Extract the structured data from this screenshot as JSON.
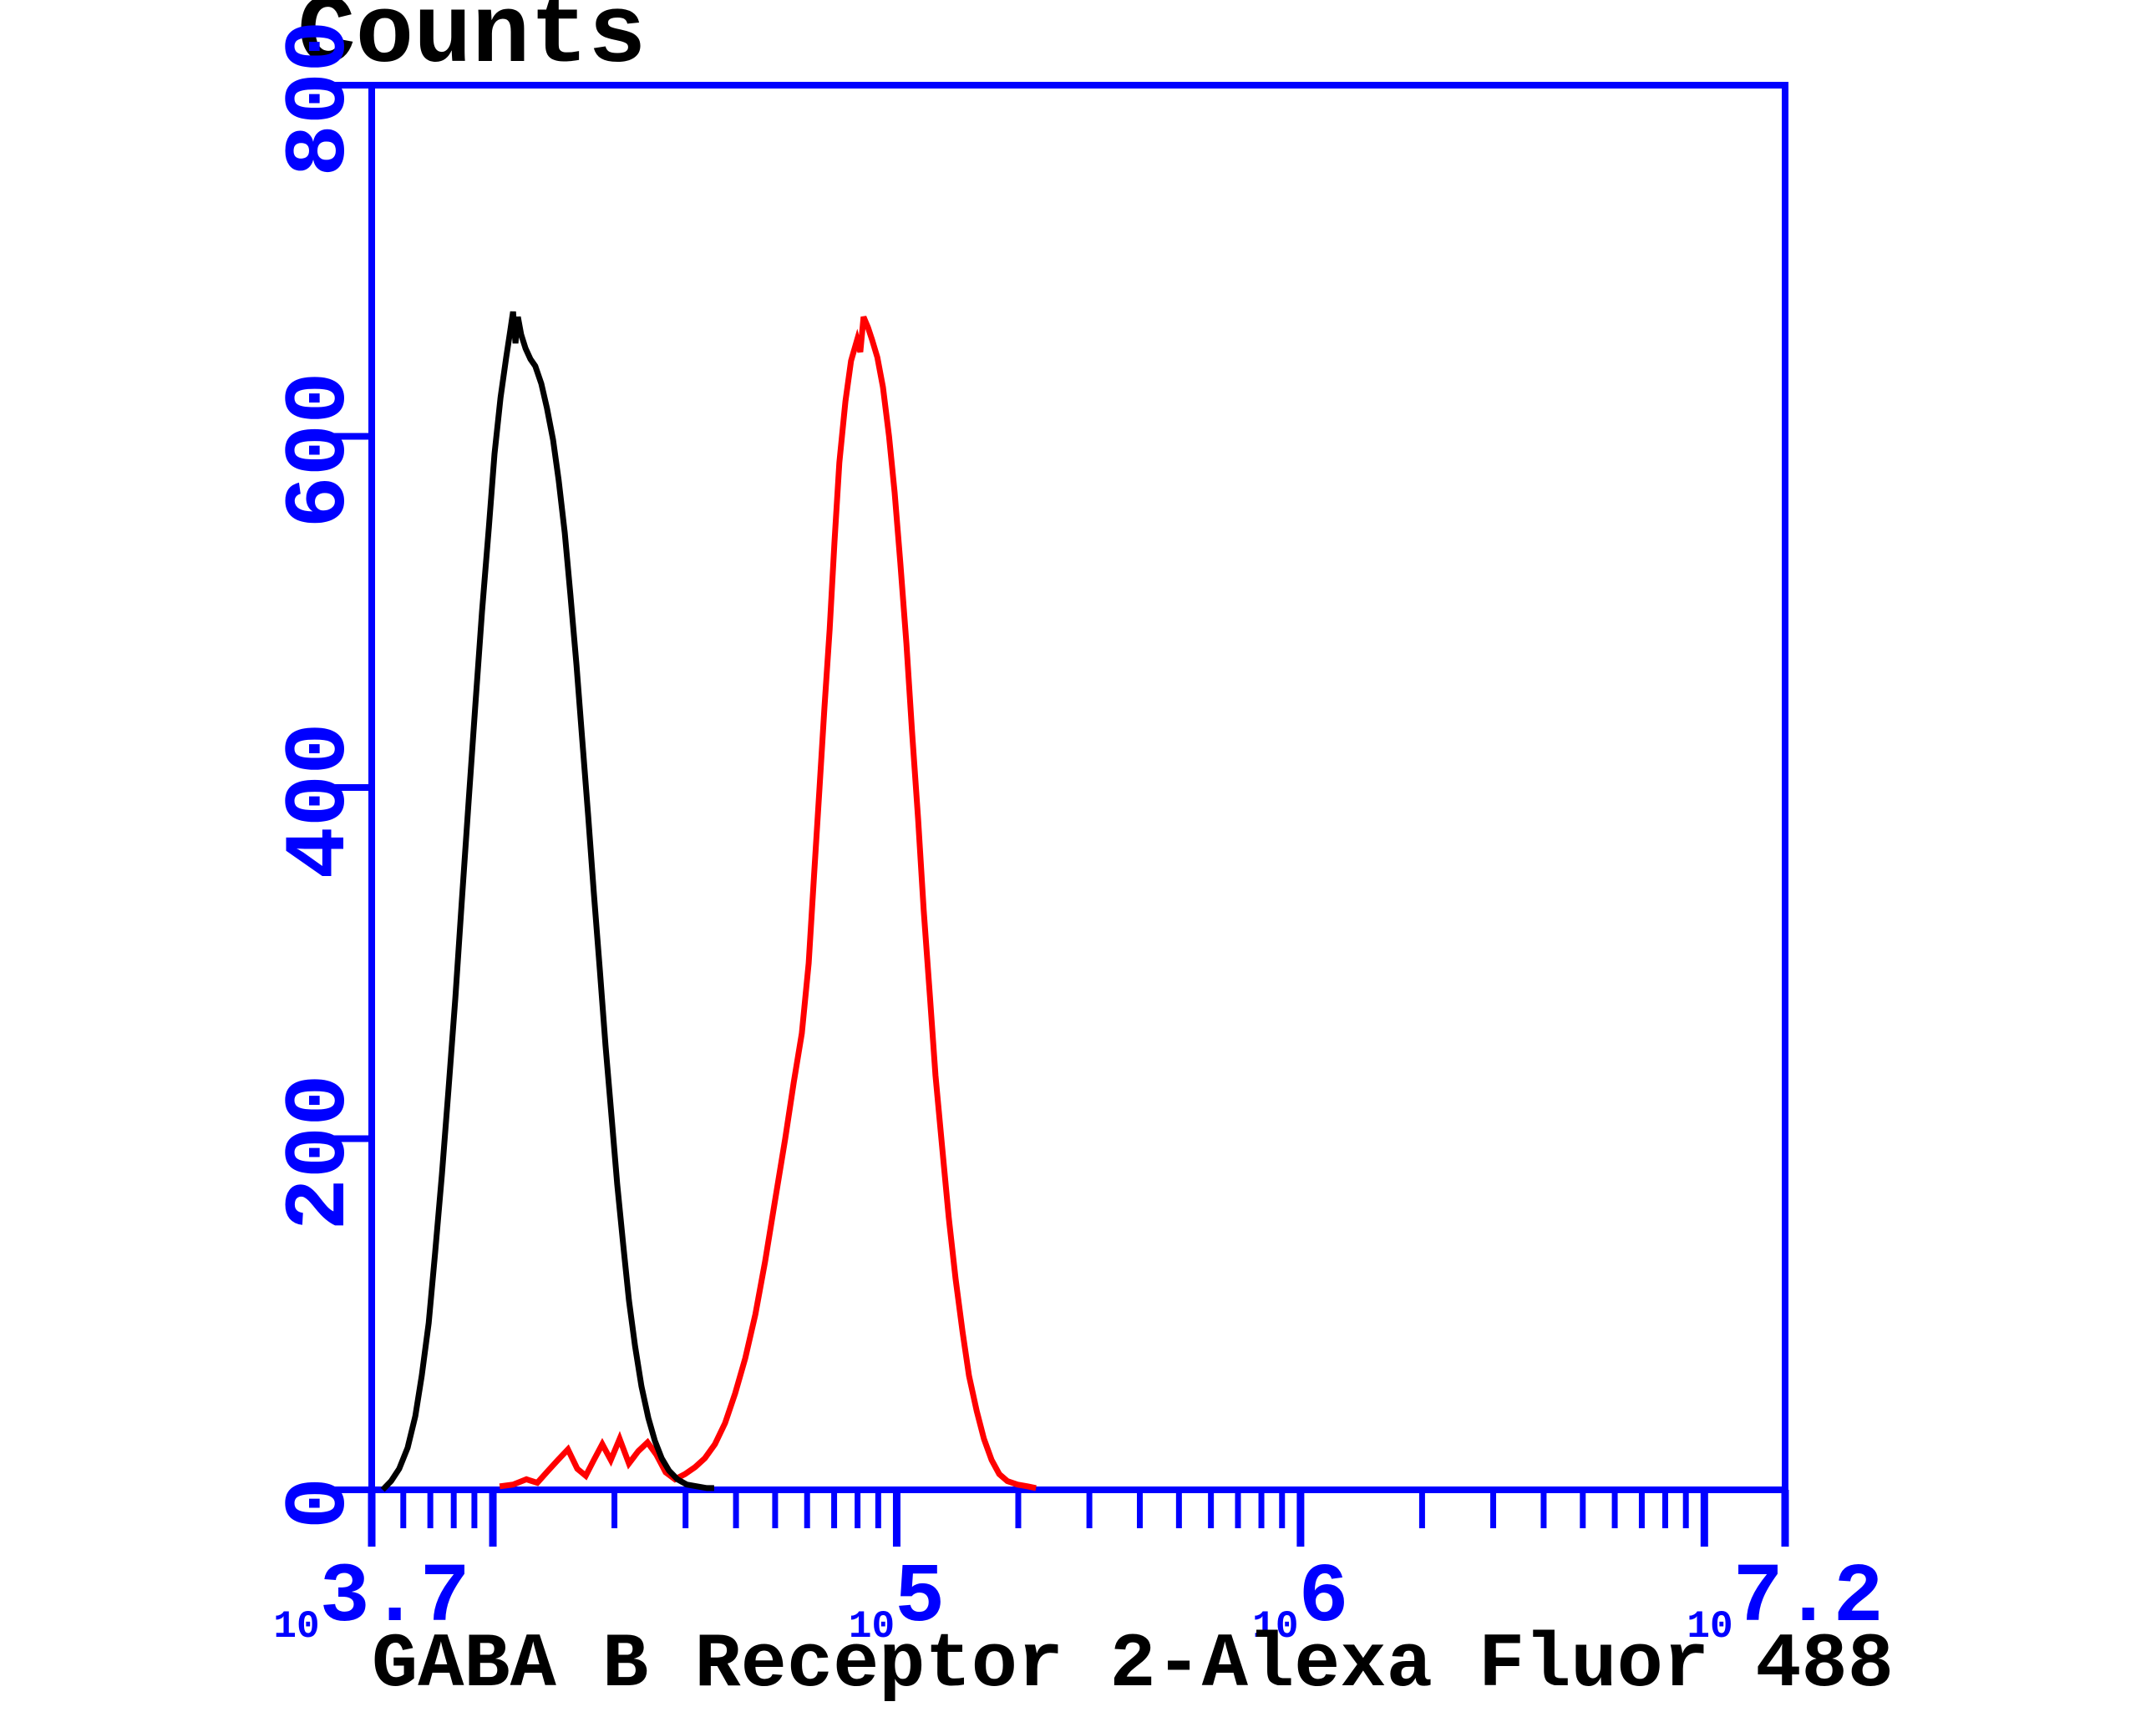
{
  "figure": {
    "background": "#ffffff",
    "y_axis": {
      "title": "Counts",
      "min": 0,
      "max": 800,
      "tick_labels": [
        "0",
        "200",
        "400",
        "600",
        "800"
      ],
      "color": "#0000ff"
    },
    "x_axis": {
      "title": "GABA B Receptor 2-Alexa Fluor 488",
      "scale": "log10",
      "min_exponent": 3.7,
      "max_exponent": 7.2,
      "labeled_ticks": [
        {
          "base": "10",
          "exp": "3.7",
          "exponent": 3.7
        },
        {
          "base": "10",
          "exp": "5",
          "exponent": 5
        },
        {
          "base": "10",
          "exp": "6",
          "exponent": 6
        },
        {
          "base": "10",
          "exp": "7.2",
          "exponent": 7.2
        }
      ],
      "color": "#0000ff"
    }
  },
  "colors": {
    "axis": "#0000ff",
    "control_curve": "#000000",
    "sample_curve": "#ff0000",
    "title_text": "#000000"
  },
  "chart_data": {
    "type": "line",
    "subtype": "flow-cytometry-histogram-overlay",
    "title": "",
    "xlabel": "GABA B Receptor 2-Alexa Fluor 488",
    "ylabel": "Counts",
    "x_scale": "log10",
    "x_units": "exponent_of_10",
    "xlim_exponent": [
      3.7,
      7.2
    ],
    "ylim": [
      0,
      800
    ],
    "y_ticks": [
      0,
      200,
      400,
      600,
      800
    ],
    "x_major_tick_exponents": [
      3.7,
      4,
      5,
      6,
      7,
      7.2
    ],
    "grid": false,
    "legend_position": "none",
    "series": [
      {
        "name": "control (black)",
        "color": "#000000",
        "peak_exponent": 4.05,
        "peak_counts": 671,
        "points": [
          [
            3.727,
            0
          ],
          [
            3.748,
            5
          ],
          [
            3.768,
            12
          ],
          [
            3.789,
            24
          ],
          [
            3.808,
            42
          ],
          [
            3.824,
            65
          ],
          [
            3.841,
            95
          ],
          [
            3.857,
            135
          ],
          [
            3.874,
            180
          ],
          [
            3.89,
            228
          ],
          [
            3.907,
            280
          ],
          [
            3.923,
            335
          ],
          [
            3.94,
            392
          ],
          [
            3.957,
            448
          ],
          [
            3.973,
            500
          ],
          [
            3.99,
            548
          ],
          [
            4.004,
            590
          ],
          [
            4.019,
            622
          ],
          [
            4.033,
            645
          ],
          [
            4.043,
            660
          ],
          [
            4.05,
            671
          ],
          [
            4.056,
            653
          ],
          [
            4.062,
            668
          ],
          [
            4.07,
            658
          ],
          [
            4.081,
            650
          ],
          [
            4.093,
            644
          ],
          [
            4.105,
            640
          ],
          [
            4.12,
            630
          ],
          [
            4.134,
            616
          ],
          [
            4.149,
            598
          ],
          [
            4.163,
            575
          ],
          [
            4.178,
            545
          ],
          [
            4.192,
            510
          ],
          [
            4.207,
            470
          ],
          [
            4.221,
            428
          ],
          [
            4.236,
            384
          ],
          [
            4.25,
            340
          ],
          [
            4.265,
            296
          ],
          [
            4.279,
            253
          ],
          [
            4.294,
            212
          ],
          [
            4.308,
            174
          ],
          [
            4.323,
            139
          ],
          [
            4.337,
            108
          ],
          [
            4.352,
            82
          ],
          [
            4.368,
            59
          ],
          [
            4.385,
            41
          ],
          [
            4.401,
            28
          ],
          [
            4.418,
            18
          ],
          [
            4.436,
            11
          ],
          [
            4.457,
            6
          ],
          [
            4.48,
            3
          ],
          [
            4.505,
            2
          ],
          [
            4.53,
            1
          ],
          [
            4.548,
            1
          ]
        ]
      },
      {
        "name": "GABA B Receptor 2-Alexa Fluor 488 (red)",
        "color": "#ff0000",
        "peak_exponent": 4.92,
        "peak_counts": 668,
        "points": [
          [
            4.017,
            2
          ],
          [
            4.05,
            3
          ],
          [
            4.083,
            6
          ],
          [
            4.11,
            4
          ],
          [
            4.137,
            11
          ],
          [
            4.161,
            17
          ],
          [
            4.186,
            23
          ],
          [
            4.209,
            12
          ],
          [
            4.23,
            8
          ],
          [
            4.25,
            17
          ],
          [
            4.271,
            26
          ],
          [
            4.292,
            17
          ],
          [
            4.314,
            29
          ],
          [
            4.337,
            15
          ],
          [
            4.36,
            22
          ],
          [
            4.383,
            27
          ],
          [
            4.405,
            20
          ],
          [
            4.428,
            10
          ],
          [
            4.451,
            6
          ],
          [
            4.476,
            9
          ],
          [
            4.501,
            13
          ],
          [
            4.525,
            18
          ],
          [
            4.55,
            26
          ],
          [
            4.575,
            38
          ],
          [
            4.6,
            55
          ],
          [
            4.625,
            75
          ],
          [
            4.65,
            100
          ],
          [
            4.674,
            130
          ],
          [
            4.699,
            165
          ],
          [
            4.724,
            200
          ],
          [
            4.745,
            232
          ],
          [
            4.765,
            260
          ],
          [
            4.782,
            300
          ],
          [
            4.796,
            352
          ],
          [
            4.809,
            400
          ],
          [
            4.821,
            445
          ],
          [
            4.834,
            490
          ],
          [
            4.846,
            540
          ],
          [
            4.858,
            585
          ],
          [
            4.873,
            620
          ],
          [
            4.887,
            643
          ],
          [
            4.902,
            655
          ],
          [
            4.91,
            648
          ],
          [
            4.918,
            668
          ],
          [
            4.929,
            662
          ],
          [
            4.939,
            655
          ],
          [
            4.952,
            645
          ],
          [
            4.966,
            628
          ],
          [
            4.981,
            600
          ],
          [
            4.995,
            568
          ],
          [
            5.009,
            528
          ],
          [
            5.024,
            482
          ],
          [
            5.038,
            432
          ],
          [
            5.053,
            382
          ],
          [
            5.067,
            330
          ],
          [
            5.082,
            282
          ],
          [
            5.096,
            236
          ],
          [
            5.113,
            194
          ],
          [
            5.129,
            155
          ],
          [
            5.146,
            120
          ],
          [
            5.163,
            90
          ],
          [
            5.179,
            65
          ],
          [
            5.198,
            45
          ],
          [
            5.216,
            29
          ],
          [
            5.235,
            17
          ],
          [
            5.254,
            9
          ],
          [
            5.274,
            5
          ],
          [
            5.299,
            3
          ],
          [
            5.324,
            2
          ],
          [
            5.345,
            1
          ]
        ]
      }
    ]
  }
}
